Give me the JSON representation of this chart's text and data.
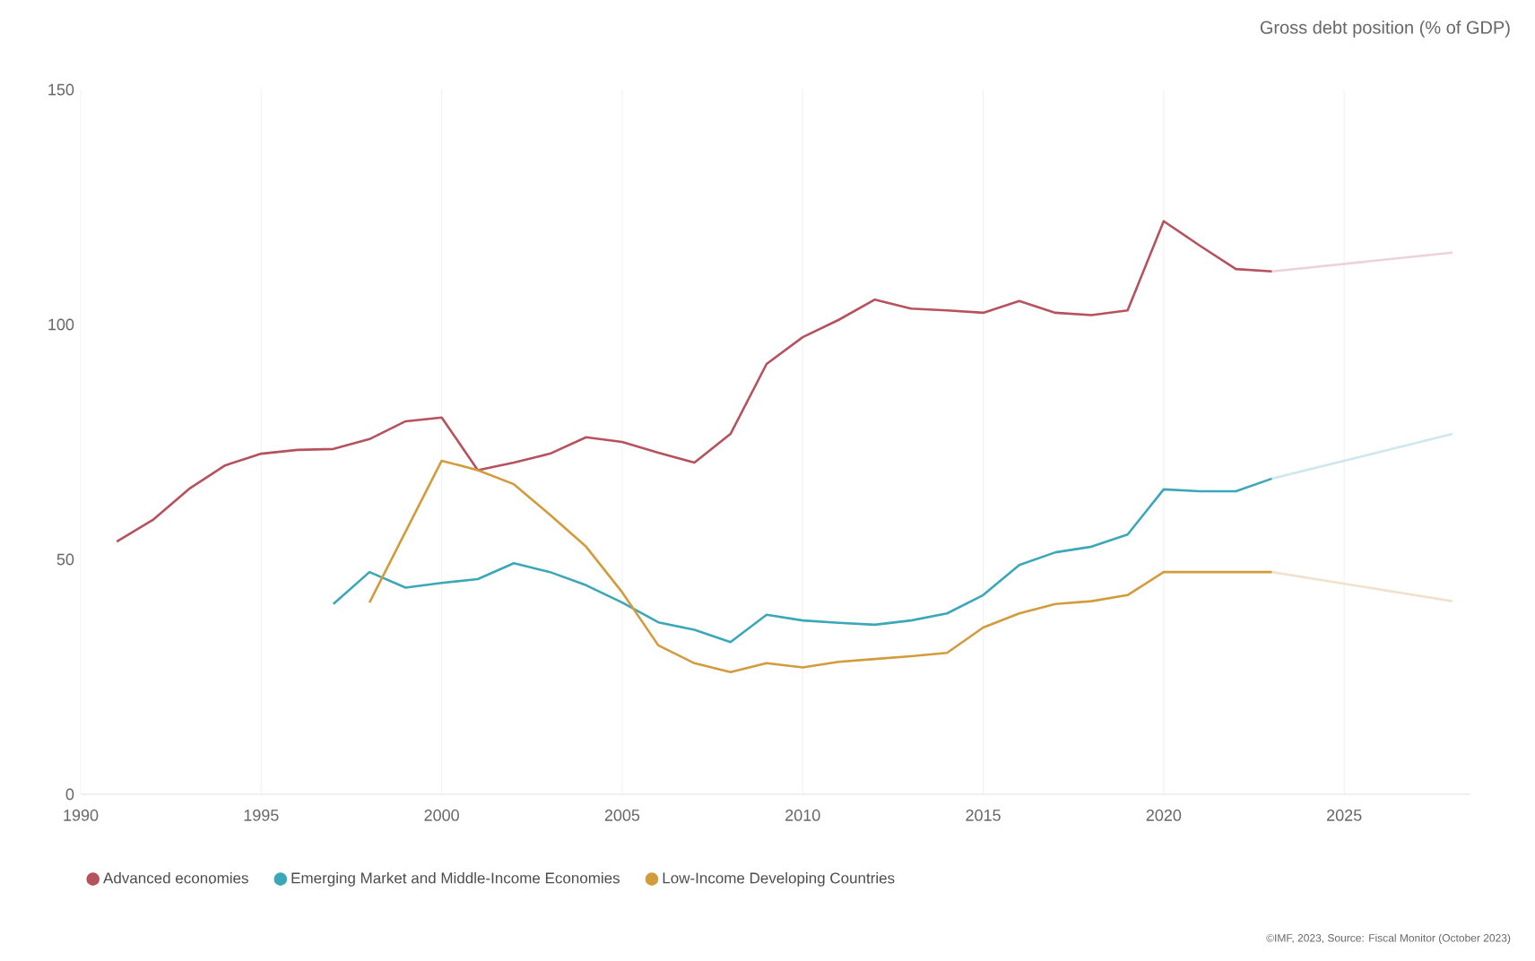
{
  "chart_data": {
    "type": "line",
    "subtitle": "Gross debt position (% of GDP)",
    "annotations": [
      "©IMF, 2023, Source: Fiscal Monitor (October 2023)"
    ],
    "xlim": [
      1990,
      2028.5
    ],
    "xticks": [
      1990,
      1995,
      2000,
      2005,
      2010,
      2015,
      2020,
      2025
    ],
    "ylim": [
      0,
      150
    ],
    "yticks": [
      0,
      50,
      100,
      150
    ],
    "grid": "x",
    "legend": "bottom",
    "marker": "none",
    "series": [
      {
        "name": "Advanced economies",
        "color": "#b5525e",
        "x": [
          1991,
          1992,
          1993,
          1994,
          1995,
          1996,
          1997,
          1998,
          1999,
          2000,
          2001,
          2002,
          2003,
          2004,
          2005,
          2006,
          2007,
          2008,
          2009,
          2010,
          2011,
          2012,
          2013,
          2014,
          2015,
          2016,
          2017,
          2018,
          2019,
          2020,
          2021,
          2022,
          2023
        ],
        "values": [
          53.8,
          58.4,
          65,
          70,
          72.5,
          73.3,
          73.5,
          75.6,
          79.4,
          80.2,
          69,
          70.6,
          72.5,
          76,
          75,
          72.7,
          70.6,
          76.7,
          91.6,
          97.3,
          101,
          105.3,
          103.4,
          103,
          102.5,
          105,
          102.5,
          102,
          103,
          122,
          116.8,
          111.8,
          111.3
        ]
      },
      {
        "name": "Emerging Market and Middle-Income Economies",
        "color": "#3ba7b9",
        "x": [
          1997,
          1998,
          1999,
          2000,
          2001,
          2002,
          2003,
          2004,
          2005,
          2006,
          2007,
          2008,
          2009,
          2010,
          2011,
          2012,
          2013,
          2014,
          2015,
          2016,
          2017,
          2018,
          2019,
          2020,
          2021,
          2022,
          2023
        ],
        "values": [
          40.5,
          47.3,
          44,
          45,
          45.8,
          49.2,
          47.3,
          44.5,
          40.8,
          36.6,
          35,
          32.4,
          38.2,
          37,
          36.5,
          36.1,
          37,
          38.5,
          42.4,
          48.8,
          51.5,
          52.7,
          55.3,
          64.9,
          64.5,
          64.5,
          67.2
        ]
      },
      {
        "name": "Low-Income Developing Countries",
        "color": "#d29b3c",
        "x": [
          1998,
          2000,
          2001,
          2002,
          2003,
          2004,
          2005,
          2006,
          2007,
          2008,
          2009,
          2010,
          2011,
          2012,
          2013,
          2014,
          2015,
          2016,
          2017,
          2018,
          2019,
          2020,
          2021,
          2022,
          2023
        ],
        "values": [
          40.8,
          71,
          69,
          66,
          59.5,
          52.7,
          43,
          31.7,
          27.9,
          26,
          27.9,
          27,
          28.2,
          28.8,
          29.4,
          30.1,
          35.5,
          38.5,
          40.5,
          41.1,
          42.4,
          47.3,
          47.3,
          47.3,
          47.3
        ]
      },
      {
        "color": "#ecd3d7",
        "x": [
          2023,
          2028
        ],
        "values": [
          111.3,
          115.3
        ]
      },
      {
        "color": "#cfe8ee",
        "x": [
          2023,
          2028
        ],
        "values": [
          67.2,
          76.7
        ]
      },
      {
        "color": "#f0e2cc",
        "x": [
          2023,
          2028
        ],
        "values": [
          47.3,
          41.1
        ]
      }
    ]
  }
}
